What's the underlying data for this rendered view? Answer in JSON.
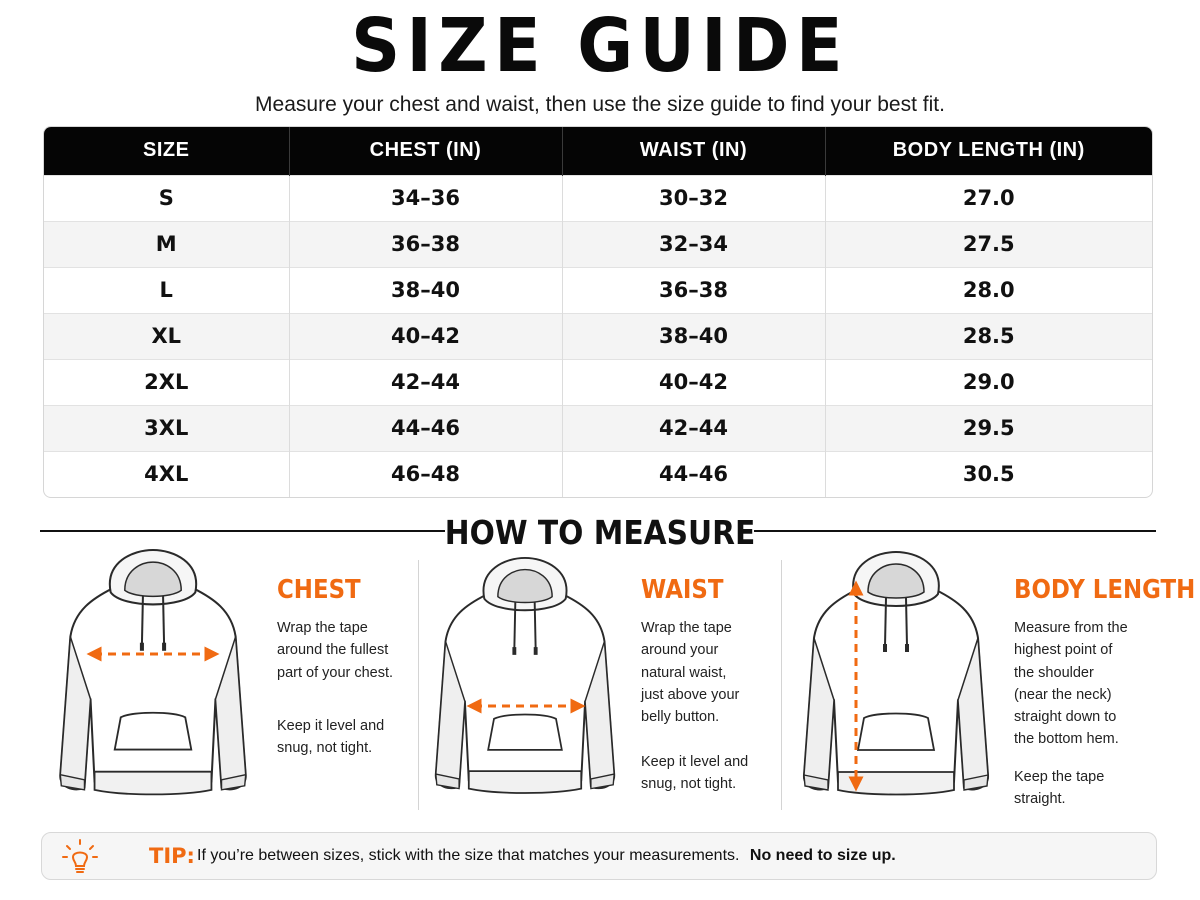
{
  "header": {
    "title": "SIZE GUIDE",
    "subtitle": "Measure your chest and waist, then use the size guide to find your best fit."
  },
  "table": {
    "headers": [
      "SIZE",
      "CHEST (IN)",
      "WAIST (IN)",
      "BODY LENGTH (IN)"
    ],
    "rows": [
      [
        "S",
        "34–36",
        "30–32",
        "27.0"
      ],
      [
        "M",
        "36–38",
        "32–34",
        "27.5"
      ],
      [
        "L",
        "38–40",
        "36–38",
        "28.0"
      ],
      [
        "XL",
        "40–42",
        "38–40",
        "28.5"
      ],
      [
        "2XL",
        "42–44",
        "40–42",
        "29.0"
      ],
      [
        "3XL",
        "44–46",
        "42–44",
        "29.5"
      ],
      [
        "4XL",
        "46–48",
        "44–46",
        "30.5"
      ]
    ]
  },
  "how_to": {
    "title": "HOW TO MEASURE",
    "items": [
      {
        "title": "CHEST",
        "lines": [
          "Wrap the tape",
          "around the fullest",
          "part of your chest."
        ],
        "lines2": [
          "Keep it level and",
          "snug, not tight."
        ],
        "icon": "hoodie-chest-icon"
      },
      {
        "title": "WAIST",
        "lines": [
          "Wrap the tape",
          "around your",
          "natural waist,",
          "just above your",
          "belly button."
        ],
        "lines2": [
          "Keep it level and",
          "snug, not tight."
        ],
        "icon": "hoodie-waist-icon"
      },
      {
        "title": "BODY LENGTH",
        "lines": [
          "Measure from the",
          "highest point of",
          "the shoulder",
          "(near the neck)",
          "straight down to",
          "the bottom hem."
        ],
        "lines2": [
          "Keep the tape",
          "straight."
        ],
        "icon": "hoodie-length-icon"
      }
    ]
  },
  "tip": {
    "label": "TIP:",
    "text": "If you’re between sizes, stick with the size that matches your measurements.",
    "strong": "No need to size up.",
    "icon": "lightbulb-icon"
  },
  "colors": {
    "accent": "#f06a12",
    "header_bg": "#050505",
    "row_alt": "#f4f4f4"
  }
}
